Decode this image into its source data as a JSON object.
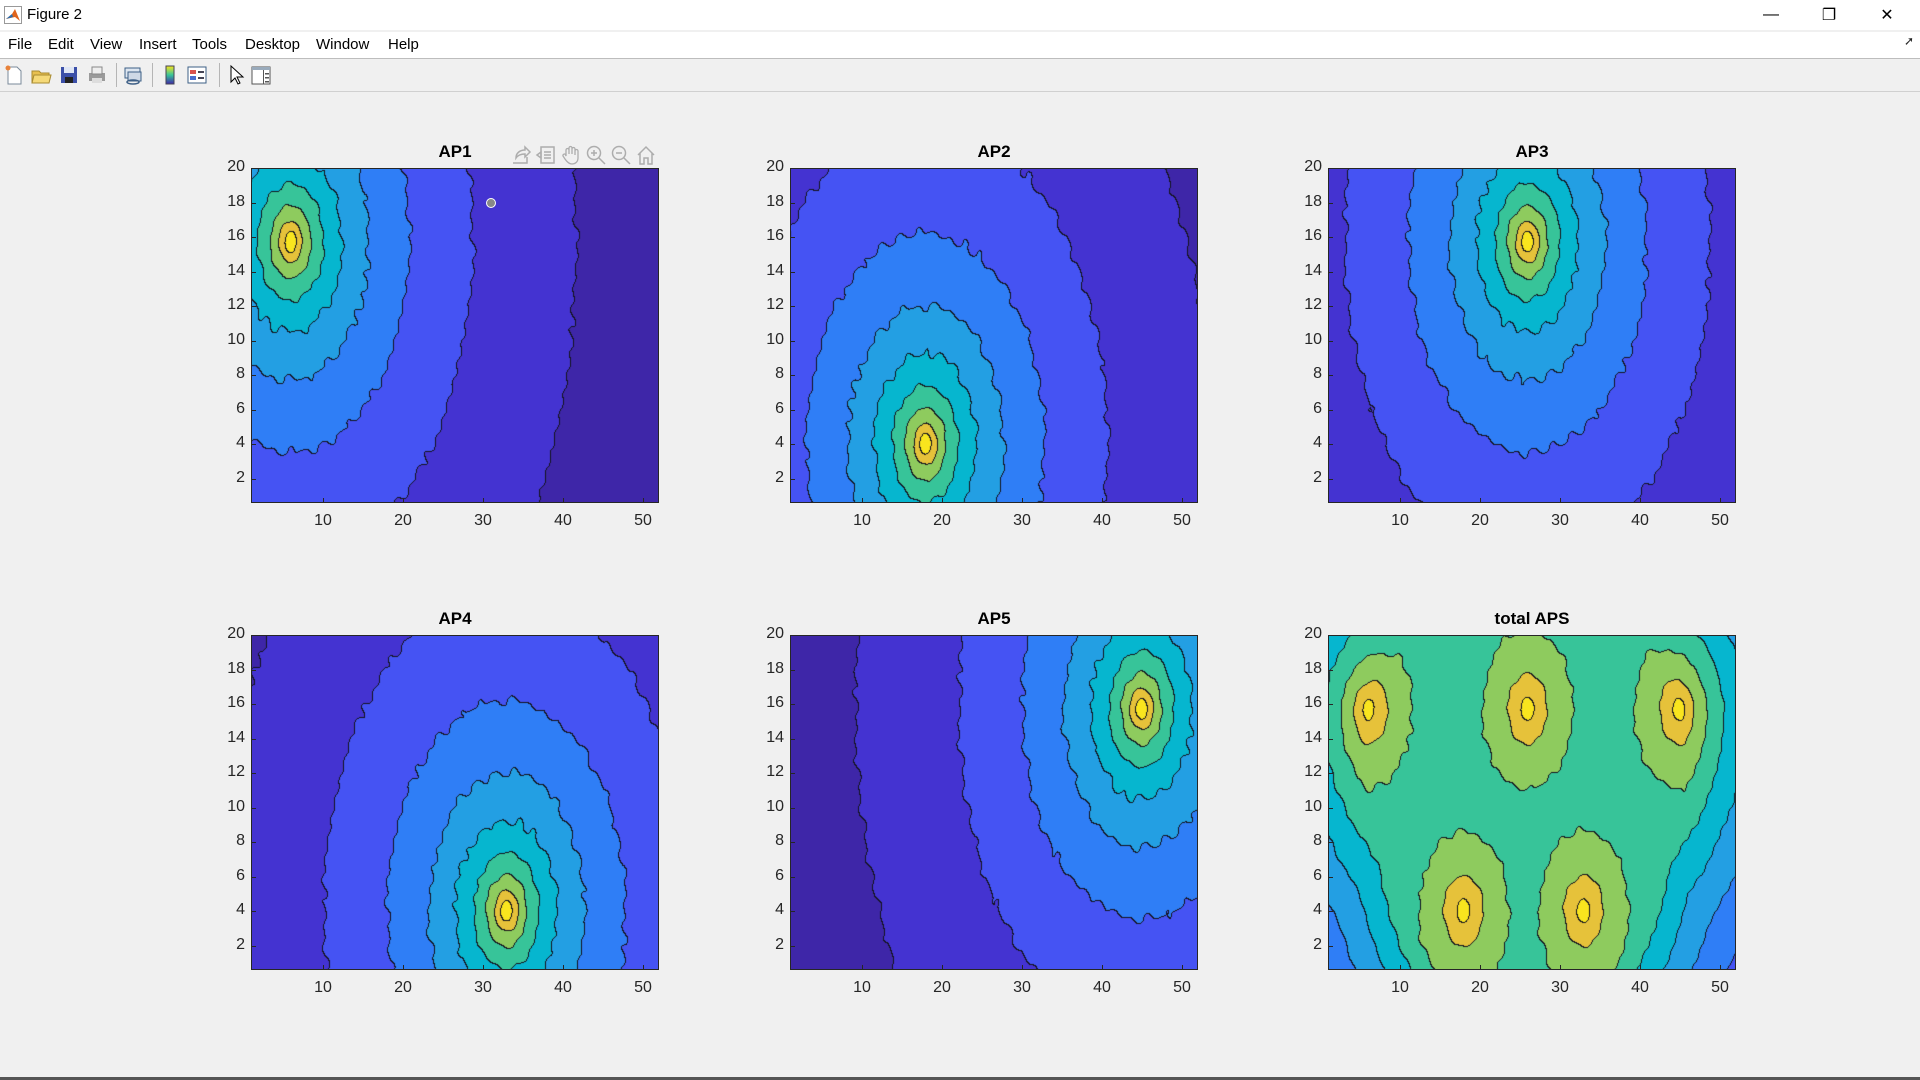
{
  "window": {
    "title": "Figure 2",
    "controls": [
      "minimize",
      "restore",
      "close"
    ]
  },
  "menu": [
    "File",
    "Edit",
    "View",
    "Insert",
    "Tools",
    "Desktop",
    "Window",
    "Help"
  ],
  "toolbar": [
    "new-figure-icon",
    "open-file-icon",
    "save-icon",
    "print-icon",
    "link-figure-icon",
    "colorbar-icon",
    "legend-icon",
    "pointer-icon",
    "property-inspector-icon"
  ],
  "axes_toolbar": [
    "export-icon",
    "brush-icon",
    "pan-icon",
    "zoom-in-icon",
    "zoom-out-icon",
    "home-icon"
  ],
  "colormap": [
    "#3e26a8",
    "#4433d1",
    "#4553f3",
    "#2f7ef6",
    "#239fe3",
    "#06b6cf",
    "#37c499",
    "#8ecb5e",
    "#e6c23a",
    "#f9e51e"
  ],
  "chart_data": [
    {
      "type": "contour",
      "title": "AP1",
      "xlim": [
        1,
        52
      ],
      "ylim": [
        0.6,
        20
      ],
      "xticks": [
        10,
        20,
        30,
        40,
        50
      ],
      "yticks": [
        2,
        4,
        6,
        8,
        10,
        12,
        14,
        16,
        18,
        20
      ],
      "peak": {
        "x": 6,
        "y": 15.7
      },
      "grid": false
    },
    {
      "type": "contour",
      "title": "AP2",
      "xlim": [
        1,
        52
      ],
      "ylim": [
        0.6,
        20
      ],
      "xticks": [
        10,
        20,
        30,
        40,
        50
      ],
      "yticks": [
        2,
        4,
        6,
        8,
        10,
        12,
        14,
        16,
        18,
        20
      ],
      "peak": {
        "x": 18,
        "y": 4
      },
      "grid": false
    },
    {
      "type": "contour",
      "title": "AP3",
      "xlim": [
        1,
        52
      ],
      "ylim": [
        0.6,
        20
      ],
      "xticks": [
        10,
        20,
        30,
        40,
        50
      ],
      "yticks": [
        2,
        4,
        6,
        8,
        10,
        12,
        14,
        16,
        18,
        20
      ],
      "peak": {
        "x": 26,
        "y": 15.7
      },
      "grid": false
    },
    {
      "type": "contour",
      "title": "AP4",
      "xlim": [
        1,
        52
      ],
      "ylim": [
        0.6,
        20
      ],
      "xticks": [
        10,
        20,
        30,
        40,
        50
      ],
      "yticks": [
        2,
        4,
        6,
        8,
        10,
        12,
        14,
        16,
        18,
        20
      ],
      "peak": {
        "x": 33,
        "y": 4
      },
      "grid": false
    },
    {
      "type": "contour",
      "title": "AP5",
      "xlim": [
        1,
        52
      ],
      "ylim": [
        0.6,
        20
      ],
      "xticks": [
        10,
        20,
        30,
        40,
        50
      ],
      "yticks": [
        2,
        4,
        6,
        8,
        10,
        12,
        14,
        16,
        18,
        20
      ],
      "peak": {
        "x": 45,
        "y": 15.7
      },
      "grid": false
    },
    {
      "type": "contour",
      "title": "total APS",
      "xlim": [
        1,
        52
      ],
      "ylim": [
        0.6,
        20
      ],
      "xticks": [
        10,
        20,
        30,
        40,
        50
      ],
      "yticks": [
        2,
        4,
        6,
        8,
        10,
        12,
        14,
        16,
        18,
        20
      ],
      "peaks": [
        {
          "x": 6,
          "y": 15.7
        },
        {
          "x": 18,
          "y": 4
        },
        {
          "x": 26,
          "y": 15.7
        },
        {
          "x": 33,
          "y": 4
        },
        {
          "x": 45,
          "y": 15.7
        }
      ],
      "grid": false
    }
  ]
}
